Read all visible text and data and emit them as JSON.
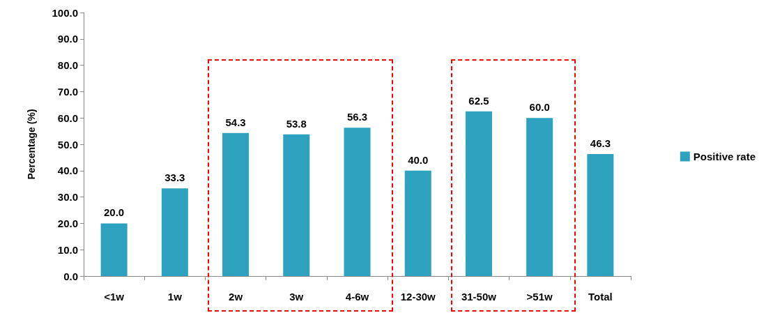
{
  "chart_data": {
    "type": "bar",
    "ylabel": "Percentage (%)",
    "categories": [
      "<1w",
      "1w",
      "2w",
      "3w",
      "4-6w",
      "12-30w",
      "31-50w",
      ">51w",
      "Total"
    ],
    "series": [
      {
        "name": "Positive rate",
        "color": "#2ca2bf",
        "values": [
          20.0,
          33.3,
          54.3,
          53.8,
          56.3,
          40.0,
          62.5,
          60.0,
          46.3
        ]
      }
    ],
    "ylim": [
      0,
      100
    ],
    "yticks": [
      {
        "value": 0,
        "label": "0.0"
      },
      {
        "value": 10,
        "label": "10.0"
      },
      {
        "value": 20,
        "label": "20.0"
      },
      {
        "value": 30,
        "label": "30.0"
      },
      {
        "value": 40,
        "label": "40.0"
      },
      {
        "value": 50,
        "label": "50.0"
      },
      {
        "value": 60,
        "label": "60.0"
      },
      {
        "value": 70,
        "label": "70.0"
      },
      {
        "value": 80,
        "label": "80.0"
      },
      {
        "value": 90,
        "label": "90.0"
      },
      {
        "value": 100,
        "label": "100.0"
      }
    ],
    "value_labels": [
      "20.0",
      "33.3",
      "54.3",
      "53.8",
      "56.3",
      "40.0",
      "62.5",
      "60.0",
      "46.3"
    ],
    "grid": false,
    "legend": "right"
  }
}
